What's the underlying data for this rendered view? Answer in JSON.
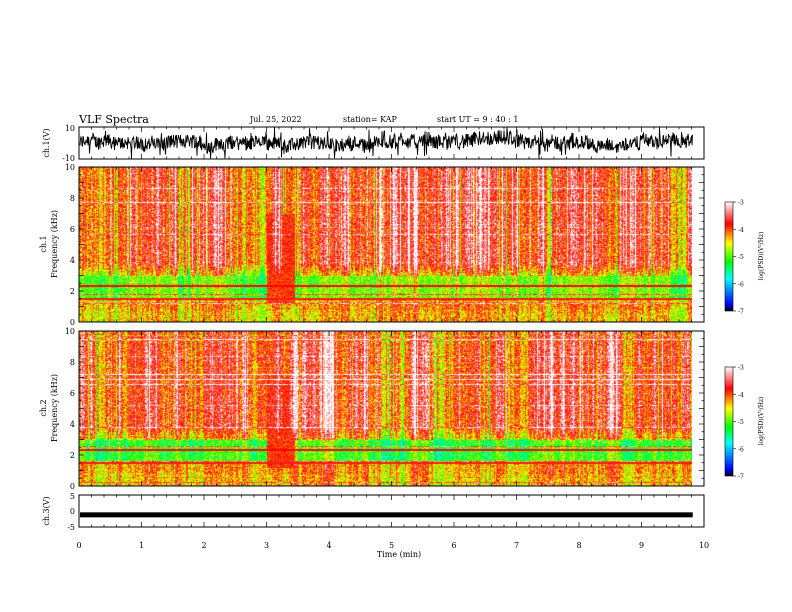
{
  "header": {
    "title": "VLF Spectra",
    "date": "Jul. 25, 2022",
    "station": "station= KAP",
    "start": "start UT =  9 : 40 : 1"
  },
  "chart_data": [
    {
      "type": "line",
      "panel": "ch1-waveform",
      "ylabel": "ch.1(V)",
      "ylim": [
        -10,
        10
      ],
      "yticks": [
        "10",
        "-10"
      ],
      "xlim": [
        0,
        10
      ],
      "series_color": "#000000"
    },
    {
      "type": "heatmap",
      "panel": "ch1-spectrogram",
      "ylabel": "ch.1\nFrequency (kHz)",
      "ylabel_line1": "ch.1",
      "ylabel_line2": "Frequency (kHz)",
      "ylim": [
        0,
        10
      ],
      "yticks": [
        "0",
        "2",
        "4",
        "6",
        "8",
        "10"
      ],
      "xlim": [
        0,
        10
      ],
      "data_end_min": 9.82,
      "colorbar": {
        "label": "log(PSD)(V²/Hz)",
        "range": [
          -7,
          -3
        ],
        "ticks": [
          "-3",
          "-4",
          "-5",
          "-6",
          "-7"
        ],
        "colors": [
          "#000000",
          "#0000ff",
          "#00ffff",
          "#00ff00",
          "#ffff00",
          "#ff0000",
          "#ffffff"
        ]
      }
    },
    {
      "type": "heatmap",
      "panel": "ch2-spectrogram",
      "ylabel": "ch.2\nFrequency (kHz)",
      "ylabel_line1": "ch.2",
      "ylabel_line2": "Frequency (kHz)",
      "ylim": [
        0,
        10
      ],
      "yticks": [
        "0",
        "2",
        "4",
        "6",
        "8",
        "10"
      ],
      "xlim": [
        0,
        10
      ],
      "data_end_min": 9.82,
      "colorbar": {
        "label": "log(PSD)(V²/Hz)",
        "range": [
          -7,
          -3
        ],
        "ticks": [
          "-3",
          "-4",
          "-5",
          "-6",
          "-7"
        ],
        "colors": [
          "#000000",
          "#0000ff",
          "#00ffff",
          "#00ff00",
          "#ffff00",
          "#ff0000",
          "#ffffff"
        ]
      }
    },
    {
      "type": "line",
      "panel": "ch3-waveform",
      "ylabel": "ch.3(V)",
      "ylim": [
        -5,
        5
      ],
      "yticks": [
        "5",
        "0",
        "-5"
      ],
      "xlim": [
        0,
        10
      ],
      "level": -1.2,
      "xlabel": "Time (min)",
      "xticks": [
        "0",
        "1",
        "2",
        "3",
        "4",
        "5",
        "6",
        "7",
        "8",
        "9",
        "10"
      ]
    }
  ]
}
